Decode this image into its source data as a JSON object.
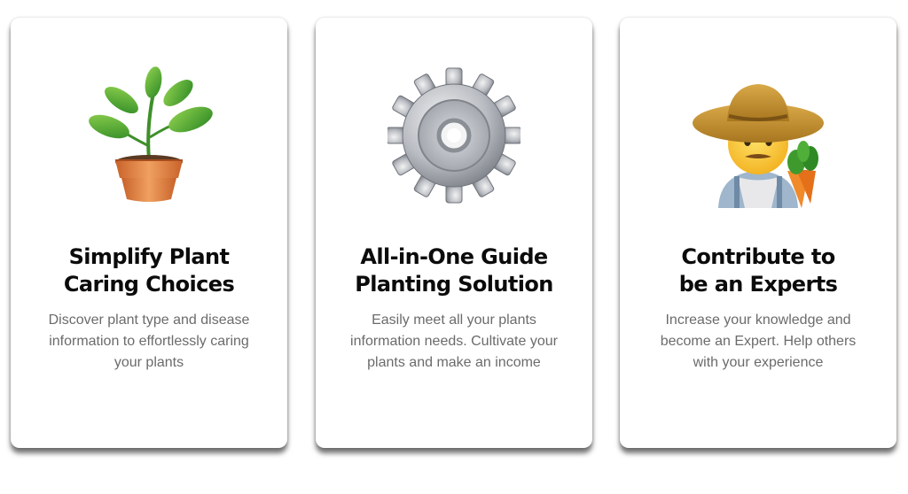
{
  "cards": [
    {
      "icon": "potted-plant-icon",
      "title_lines": [
        "Simplify Plant",
        "Caring Choices"
      ],
      "desc_lines": [
        "Discover plant type and disease",
        "information to effortlessly caring",
        "your plants"
      ]
    },
    {
      "icon": "gear-icon",
      "title_lines": [
        "All-in-One Guide",
        "Planting Solution"
      ],
      "desc_lines": [
        "Easily meet all your plants",
        "information needs. Cultivate your",
        "plants and make an income"
      ]
    },
    {
      "icon": "farmer-icon",
      "title_lines": [
        "Contribute to",
        "be an Experts"
      ],
      "desc_lines": [
        "Increase your knowledge and",
        "become an Expert. Help others",
        "with your experience"
      ]
    }
  ],
  "colors": {
    "card_bg": "#ffffff",
    "title": "#0b0b0b",
    "description": "#6b6b6b"
  }
}
